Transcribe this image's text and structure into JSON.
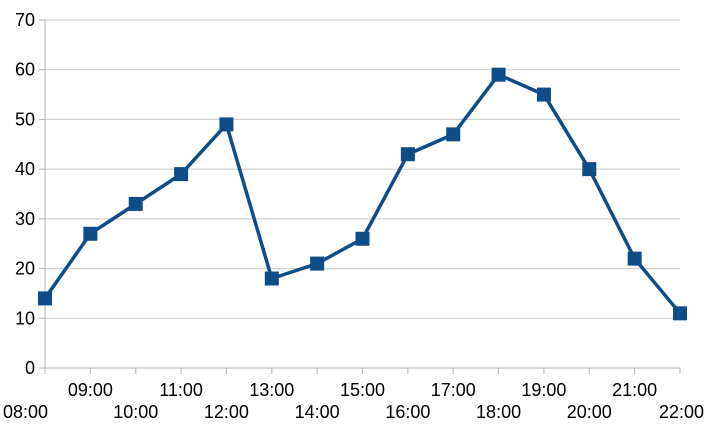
{
  "chart_data": {
    "type": "line",
    "title": "",
    "xlabel": "",
    "ylabel": "",
    "ylim": [
      0,
      70
    ],
    "y_ticks": [
      0,
      10,
      20,
      30,
      40,
      50,
      60,
      70
    ],
    "grid": "horizontal",
    "legend": "none",
    "categories": [
      "08:00",
      "09:00",
      "10:00",
      "11:00",
      "12:00",
      "13:00",
      "14:00",
      "15:00",
      "16:00",
      "17:00",
      "18:00",
      "19:00",
      "20:00",
      "21:00",
      "22:00"
    ],
    "series": [
      {
        "values": [
          14,
          27,
          33,
          39,
          49,
          18,
          21,
          26,
          43,
          47,
          59,
          55,
          40,
          22,
          11
        ],
        "color": "#0e4c8a",
        "marker": "square"
      }
    ]
  }
}
